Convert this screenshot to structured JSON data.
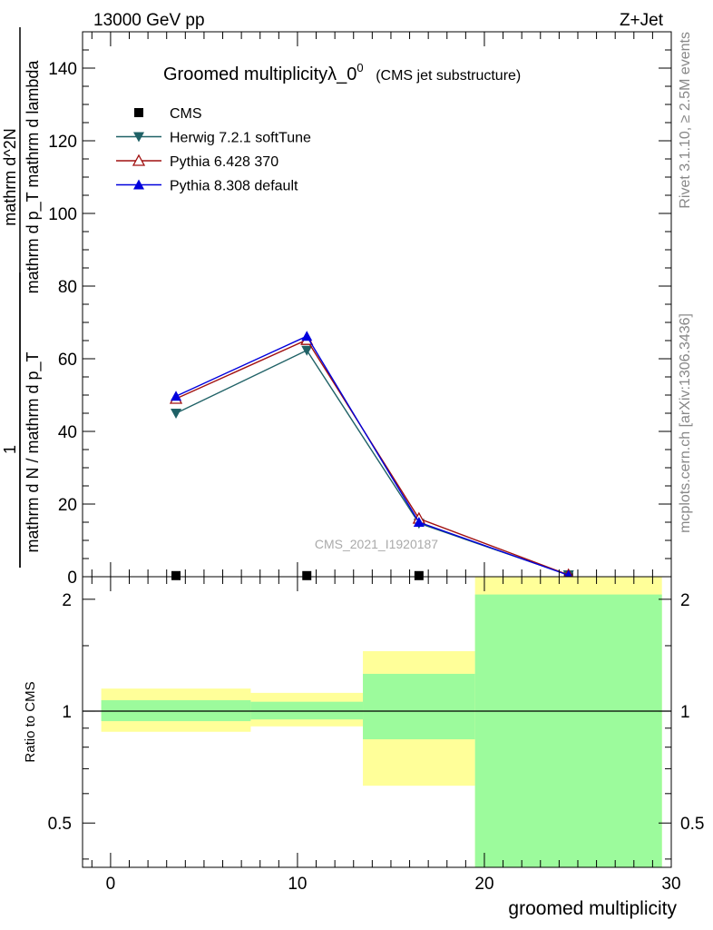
{
  "header": {
    "energy_label": "13000 GeV pp",
    "process_label": "Z+Jet",
    "side_label_top": "Rivet 3.1.10, ≥ 2.5M events",
    "side_label_bottom": "mcplots.cern.ch [arXiv:1306.3436]",
    "watermark": "CMS_2021_I1920187"
  },
  "chart_data": [
    {
      "type": "line",
      "title": "Groomed multiplicityλ_0",
      "title_sup": "0",
      "subtitle": "(CMS jet substructure)",
      "ylabel_frac_top": "1",
      "ylabel_frac_bottom": "mathrm d N / mathrm d p_T",
      "ylabel_main_top": "mathrm d^2N",
      "ylabel_main_bottom": "mathrm d p_T mathrm d lambda",
      "ylim": [
        0,
        150
      ],
      "yticks": [
        0,
        20,
        40,
        60,
        80,
        100,
        120,
        140
      ],
      "xlim": [
        -1.5,
        30
      ],
      "legend_position": "top-left",
      "series": [
        {
          "name": "CMS",
          "marker": "square",
          "color": "#000000",
          "x": [
            3.5,
            10.5,
            16.5,
            24.5
          ],
          "values": [
            0.3,
            0.3,
            0.3,
            0.3
          ]
        },
        {
          "name": "Herwig 7.2.1 softTune",
          "marker": "triangle-down",
          "color": "#1f6166",
          "x": [
            3.5,
            10.5,
            16.5,
            24.5
          ],
          "values": [
            45.0,
            62.3,
            14.7,
            0.5
          ]
        },
        {
          "name": "Pythia 6.428 370",
          "marker": "triangle-up-open",
          "color": "#a01010",
          "x": [
            3.5,
            10.5,
            16.5,
            24.5
          ],
          "values": [
            49.0,
            65.2,
            16.0,
            0.5
          ]
        },
        {
          "name": "Pythia 8.308 default",
          "marker": "triangle-up",
          "color": "#0000dd",
          "x": [
            3.5,
            10.5,
            16.5,
            24.5
          ],
          "values": [
            49.7,
            66.2,
            15.0,
            0.4
          ]
        }
      ]
    },
    {
      "type": "area",
      "ylabel": "Ratio to CMS",
      "xlabel": "groomed multiplicity",
      "ylim": [
        0.38,
        2.3
      ],
      "log_y": true,
      "yticks": [
        0.5,
        1,
        2
      ],
      "xticks": [
        0,
        10,
        20,
        30
      ],
      "xlim": [
        -1.5,
        30
      ],
      "reference_line": 1,
      "colors": {
        "stat_band": "#9cfb9c",
        "total_band": "#ffff99"
      },
      "bins": [
        {
          "x_low": -0.5,
          "x_high": 7.5,
          "inner": [
            0.94,
            1.07
          ],
          "outer": [
            0.88,
            1.15
          ]
        },
        {
          "x_low": 7.5,
          "x_high": 13.5,
          "inner": [
            0.95,
            1.06
          ],
          "outer": [
            0.91,
            1.12
          ]
        },
        {
          "x_low": 13.5,
          "x_high": 19.5,
          "inner": [
            0.84,
            1.26
          ],
          "outer": [
            0.63,
            1.45
          ]
        },
        {
          "x_low": 19.5,
          "x_high": 29.5,
          "inner": [
            0.38,
            2.06
          ],
          "outer": [
            0.38,
            2.3
          ]
        }
      ]
    }
  ]
}
